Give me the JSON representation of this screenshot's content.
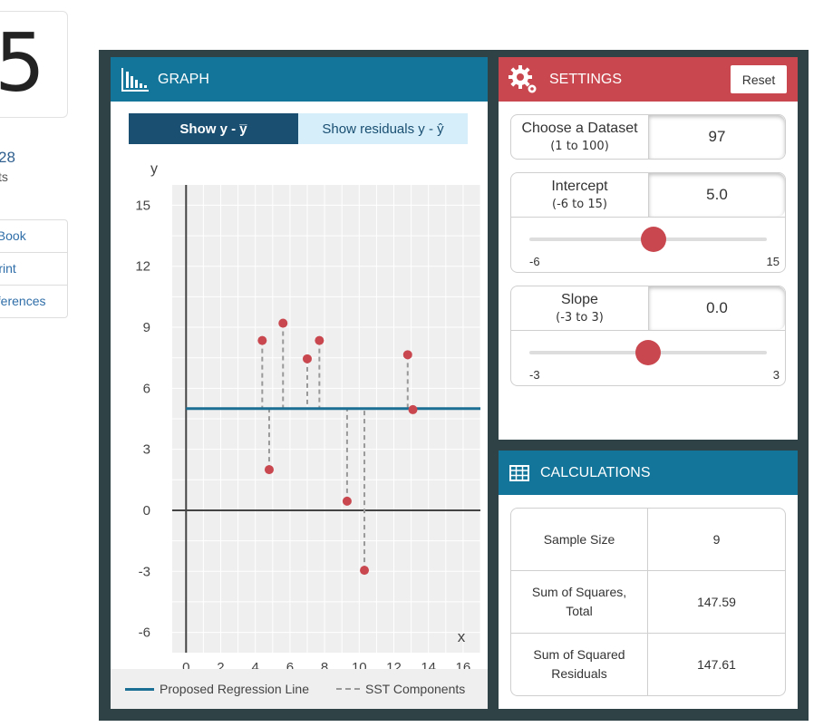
{
  "left": {
    "score": "5",
    "points_value": "28",
    "points_label": "ts",
    "links": [
      "eBook",
      "Print",
      "eferences"
    ]
  },
  "graph": {
    "title": "GRAPH",
    "toggle_active": "Show y - y̅",
    "toggle_inactive": "Show residuals y - ŷ",
    "legend_line": "Proposed Regression Line",
    "legend_dash": "SST Components"
  },
  "settings": {
    "title": "SETTINGS",
    "reset_label": "Reset",
    "dataset": {
      "label": "Choose a Dataset",
      "range": "(1 to 100)",
      "value": "97"
    },
    "intercept": {
      "label": "Intercept",
      "range": "(-6 to 15)",
      "value": "5.0",
      "min": "-6",
      "max": "15",
      "numeric": 5.0,
      "lo": -6,
      "hi": 15
    },
    "slope": {
      "label": "Slope",
      "range": "(-3 to 3)",
      "value": "0.0",
      "min": "-3",
      "max": "3",
      "numeric": 0.0,
      "lo": -3,
      "hi": 3
    }
  },
  "calculations": {
    "title": "CALCULATIONS",
    "rows": [
      {
        "label": "Sample Size",
        "value": "9"
      },
      {
        "label": "Sum of Squares, Total",
        "value": "147.59"
      },
      {
        "label": "Sum of Squared Residuals",
        "value": "147.61"
      }
    ]
  },
  "chart_data": {
    "type": "scatter",
    "title": "",
    "xlabel": "x",
    "ylabel": "y",
    "xlim": [
      -0.8,
      17
    ],
    "ylim": [
      -7,
      16
    ],
    "xticks": [
      0,
      2,
      4,
      6,
      8,
      10,
      12,
      14,
      16
    ],
    "yticks": [
      -6,
      -3,
      0,
      3,
      6,
      9,
      12,
      15
    ],
    "regression": {
      "intercept": 5.0,
      "slope": 0.0
    },
    "points": [
      {
        "x": 4.4,
        "y": 8.35
      },
      {
        "x": 4.8,
        "y": 2.0
      },
      {
        "x": 5.6,
        "y": 9.2
      },
      {
        "x": 7.0,
        "y": 7.45
      },
      {
        "x": 7.7,
        "y": 8.35
      },
      {
        "x": 9.3,
        "y": 0.45
      },
      {
        "x": 10.3,
        "y": -2.95
      },
      {
        "x": 12.8,
        "y": 7.65
      },
      {
        "x": 13.1,
        "y": 4.95
      }
    ],
    "colors": {
      "point": "#c9484f",
      "line": "#1c6f94",
      "dash": "#999999"
    }
  }
}
